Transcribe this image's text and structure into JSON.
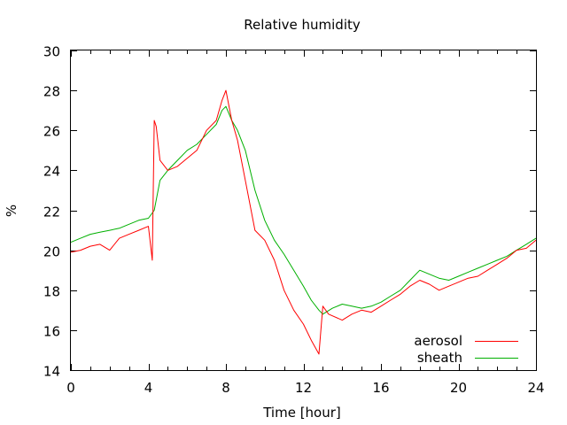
{
  "chart_data": {
    "type": "line",
    "title": "Relative humidity",
    "xlabel": "Time [hour]",
    "ylabel": "%",
    "xlim": [
      0,
      24
    ],
    "ylim": [
      14,
      30
    ],
    "xticks": [
      0,
      4,
      8,
      12,
      16,
      20,
      24
    ],
    "yticks": [
      14,
      16,
      18,
      20,
      22,
      24,
      26,
      28,
      30
    ],
    "legend_position": "bottom-right",
    "grid": false,
    "series": [
      {
        "name": "aerosol",
        "color": "#ff0000",
        "x": [
          0,
          0.5,
          1,
          1.5,
          2,
          2.5,
          3,
          3.5,
          4,
          4.2,
          4.3,
          4.4,
          4.6,
          5,
          5.5,
          6,
          6.5,
          7,
          7.5,
          7.8,
          8,
          8.3,
          8.6,
          9,
          9.5,
          10,
          10.5,
          11,
          11.5,
          12,
          12.4,
          12.8,
          13,
          13.3,
          14,
          14.5,
          15,
          15.5,
          16,
          16.5,
          17,
          17.5,
          18,
          18.5,
          19,
          19.5,
          20,
          20.5,
          21,
          21.5,
          22,
          22.5,
          23,
          23.5,
          24
        ],
        "y": [
          19.9,
          20.0,
          20.2,
          20.3,
          20.0,
          20.6,
          20.8,
          21.0,
          21.2,
          19.5,
          26.5,
          26.2,
          24.5,
          24.0,
          24.2,
          24.6,
          25.0,
          26.0,
          26.5,
          27.5,
          28.0,
          26.5,
          25.5,
          23.5,
          21.0,
          20.5,
          19.5,
          18.0,
          17.0,
          16.3,
          15.5,
          14.8,
          17.2,
          16.8,
          16.5,
          16.8,
          17.0,
          16.9,
          17.2,
          17.5,
          17.8,
          18.2,
          18.5,
          18.3,
          18.0,
          18.2,
          18.4,
          18.6,
          18.7,
          19.0,
          19.3,
          19.6,
          20.0,
          20.1,
          20.5
        ]
      },
      {
        "name": "sheath",
        "color": "#00b000",
        "x": [
          0,
          0.5,
          1,
          1.5,
          2,
          2.5,
          3,
          3.5,
          4,
          4.3,
          4.6,
          5,
          5.5,
          6,
          6.5,
          7,
          7.5,
          7.8,
          8,
          8.3,
          8.6,
          9,
          9.5,
          10,
          10.5,
          11,
          11.5,
          12,
          12.4,
          12.8,
          13,
          13.5,
          14,
          14.5,
          15,
          15.5,
          16,
          16.5,
          17,
          17.5,
          18,
          18.5,
          19,
          19.5,
          20,
          20.5,
          21,
          21.5,
          22,
          22.5,
          23,
          23.5,
          24
        ],
        "y": [
          20.4,
          20.6,
          20.8,
          20.9,
          21.0,
          21.1,
          21.3,
          21.5,
          21.6,
          22.0,
          23.5,
          24.0,
          24.5,
          25.0,
          25.3,
          25.8,
          26.3,
          27.0,
          27.2,
          26.5,
          26.0,
          25.0,
          23.0,
          21.5,
          20.5,
          19.8,
          19.0,
          18.2,
          17.5,
          17.0,
          16.8,
          17.1,
          17.3,
          17.2,
          17.1,
          17.2,
          17.4,
          17.7,
          18.0,
          18.5,
          19.0,
          18.8,
          18.6,
          18.5,
          18.7,
          18.9,
          19.1,
          19.3,
          19.5,
          19.7,
          20.0,
          20.3,
          20.6
        ]
      }
    ]
  }
}
